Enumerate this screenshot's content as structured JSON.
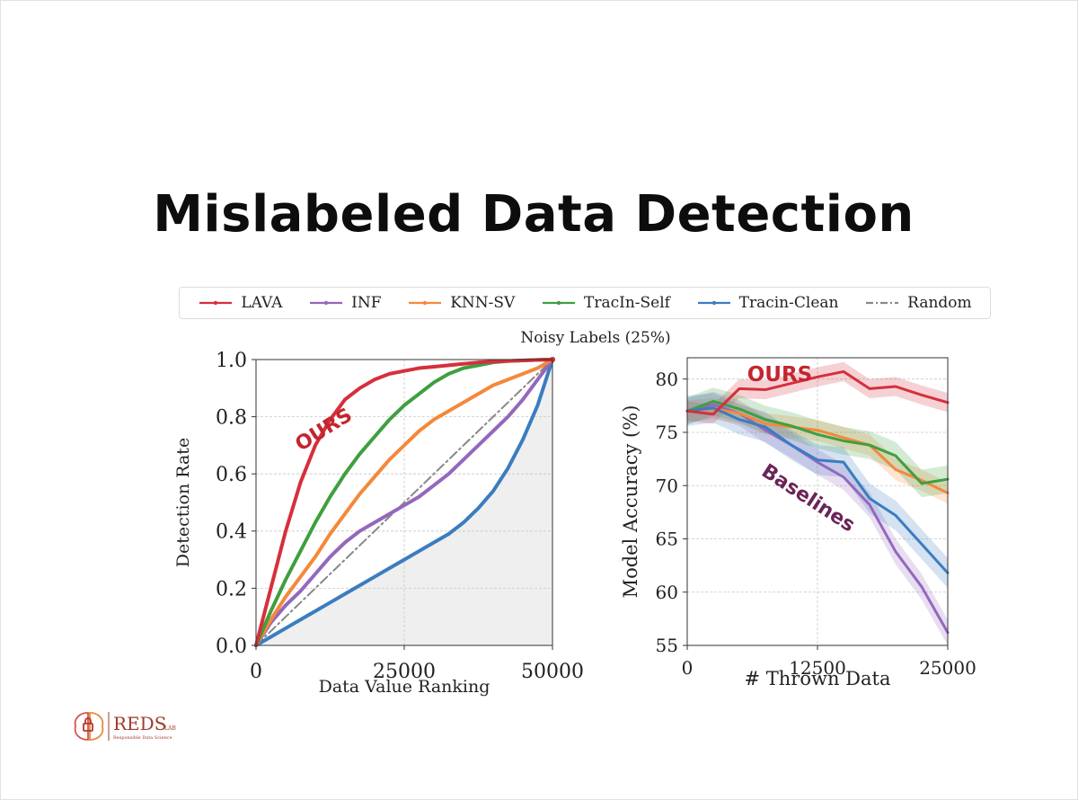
{
  "title": "Mislabeled Data Detection",
  "subtitle": "Noisy Labels (25%)",
  "legend": [
    {
      "label": "LAVA",
      "color": "#d62f3c",
      "style": "solid"
    },
    {
      "label": "INF",
      "color": "#9467bd",
      "style": "solid"
    },
    {
      "label": "KNN-SV",
      "color": "#f5883a",
      "style": "solid"
    },
    {
      "label": "TracIn-Self",
      "color": "#3f9f3f",
      "style": "solid"
    },
    {
      "label": "Tracin-Clean",
      "color": "#3a7dc0",
      "style": "solid"
    },
    {
      "label": "Random",
      "color": "#888888",
      "style": "dashdot"
    }
  ],
  "annotations": {
    "ours_left": "OURS",
    "ours_right": "OURS",
    "baselines": "Baselines",
    "ours_color": "#c4252f",
    "baselines_color": "#6a2458"
  },
  "logo": {
    "text": "REDS",
    "sup": "LAB",
    "subtext": "Responsible Data Science",
    "color": "#a03a2c"
  },
  "chart_data": [
    {
      "type": "line",
      "xlabel": "Data Value Ranking",
      "ylabel": "Detection Rate",
      "xlim": [
        0,
        50000
      ],
      "ylim": [
        0,
        1.0
      ],
      "xticks": [
        0,
        25000,
        50000
      ],
      "yticks": [
        0.0,
        0.2,
        0.4,
        0.6,
        0.8,
        1.0
      ],
      "ytick_labels": [
        "0.0",
        "0.2",
        "0.4",
        "0.6",
        "0.8",
        "1.0"
      ],
      "grid": true,
      "shaded_region": "area below Tracin-Clean curve",
      "x": [
        0,
        2500,
        5000,
        7500,
        10000,
        12500,
        15000,
        17500,
        20000,
        22500,
        25000,
        27500,
        30000,
        32500,
        35000,
        37500,
        40000,
        42500,
        45000,
        47500,
        50000
      ],
      "series": [
        {
          "name": "LAVA",
          "values": [
            0,
            0.2,
            0.4,
            0.57,
            0.7,
            0.79,
            0.86,
            0.9,
            0.93,
            0.95,
            0.96,
            0.97,
            0.975,
            0.98,
            0.985,
            0.99,
            0.993,
            0.995,
            0.997,
            0.999,
            1.0
          ]
        },
        {
          "name": "INF",
          "values": [
            0,
            0.08,
            0.14,
            0.19,
            0.25,
            0.31,
            0.36,
            0.4,
            0.43,
            0.46,
            0.49,
            0.52,
            0.56,
            0.6,
            0.65,
            0.7,
            0.75,
            0.8,
            0.86,
            0.93,
            1.0
          ]
        },
        {
          "name": "KNN-SV",
          "values": [
            0,
            0.09,
            0.17,
            0.24,
            0.31,
            0.39,
            0.46,
            0.53,
            0.59,
            0.65,
            0.7,
            0.75,
            0.79,
            0.82,
            0.85,
            0.88,
            0.91,
            0.93,
            0.95,
            0.97,
            1.0
          ]
        },
        {
          "name": "TracIn-Self",
          "values": [
            0,
            0.12,
            0.23,
            0.33,
            0.43,
            0.52,
            0.6,
            0.67,
            0.73,
            0.79,
            0.84,
            0.88,
            0.92,
            0.95,
            0.97,
            0.98,
            0.99,
            0.995,
            0.997,
            0.999,
            1.0
          ]
        },
        {
          "name": "Tracin-Clean",
          "values": [
            0,
            0.03,
            0.06,
            0.09,
            0.12,
            0.15,
            0.18,
            0.21,
            0.24,
            0.27,
            0.3,
            0.33,
            0.36,
            0.39,
            0.43,
            0.48,
            0.54,
            0.62,
            0.72,
            0.84,
            1.0
          ]
        },
        {
          "name": "Random",
          "values": [
            0,
            0.05,
            0.1,
            0.15,
            0.2,
            0.25,
            0.3,
            0.35,
            0.4,
            0.45,
            0.5,
            0.55,
            0.6,
            0.65,
            0.7,
            0.75,
            0.8,
            0.85,
            0.9,
            0.95,
            1.0
          ]
        }
      ]
    },
    {
      "type": "line",
      "xlabel": "# Thrown Data",
      "ylabel": "Model Accuracy (%)",
      "xlim": [
        0,
        25000
      ],
      "ylim": [
        55,
        82
      ],
      "xticks": [
        0,
        12500,
        25000
      ],
      "yticks": [
        55,
        60,
        65,
        70,
        75,
        80
      ],
      "grid": true,
      "x": [
        0,
        2500,
        5000,
        7500,
        10000,
        12500,
        15000,
        17500,
        20000,
        22500,
        25000
      ],
      "series": [
        {
          "name": "LAVA",
          "values": [
            77,
            76.7,
            79.1,
            79,
            79.6,
            80.2,
            80.7,
            79.1,
            79.3,
            78.5,
            77.8
          ],
          "band": 0.9
        },
        {
          "name": "INF",
          "values": [
            77,
            77.6,
            76.8,
            75.2,
            73.8,
            72.2,
            70.8,
            68.2,
            63.8,
            60.5,
            56.2
          ],
          "band": 1.2
        },
        {
          "name": "KNN-SV",
          "values": [
            77,
            77.2,
            76.8,
            75.8,
            75.5,
            75.2,
            74.5,
            73.8,
            71.5,
            70.5,
            69.3
          ],
          "band": 1.0
        },
        {
          "name": "TracIn-Self",
          "values": [
            77,
            77.9,
            77.2,
            76.2,
            75.6,
            74.8,
            74.2,
            73.8,
            72.8,
            70.2,
            70.6
          ],
          "band": 1.3
        },
        {
          "name": "Tracin-Clean",
          "values": [
            77,
            77.3,
            76.2,
            75.5,
            73.8,
            72.4,
            72.2,
            68.8,
            67.2,
            64.5,
            61.8
          ],
          "band": 1.4
        }
      ]
    }
  ]
}
